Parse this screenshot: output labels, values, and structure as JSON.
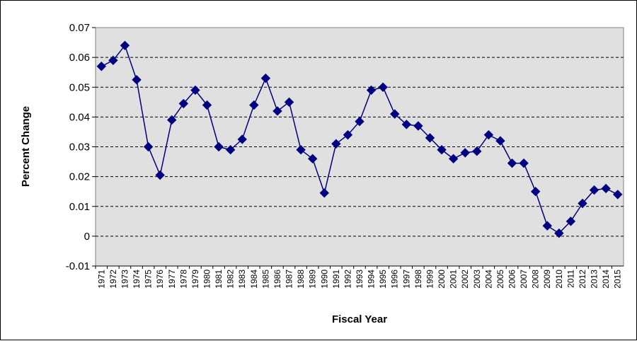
{
  "chart_data": {
    "type": "line",
    "title": "",
    "xlabel": "Fiscal Year",
    "ylabel": "Percent Change",
    "ylim": [
      -0.01,
      0.07
    ],
    "yticks": [
      "0.07",
      "0.06",
      "0.05",
      "0.04",
      "0.03",
      "0.02",
      "0.01",
      "0",
      "-0.01"
    ],
    "grid": "horizontal dashed",
    "legend": "none",
    "plot_background": "#E0E0E0",
    "series_color": "#000080",
    "marker": "diamond",
    "x": [
      "1971",
      "1972",
      "1973",
      "1974",
      "1975",
      "1976",
      "1977",
      "1978",
      "1979",
      "1980",
      "1981",
      "1982",
      "1983",
      "1984",
      "1985",
      "1986",
      "1987",
      "1988",
      "1989",
      "1990",
      "1991",
      "1992",
      "1993",
      "1994",
      "1995",
      "1996",
      "1997",
      "1998",
      "1999",
      "2000",
      "2001",
      "2002",
      "2003",
      "2004",
      "2005",
      "2006",
      "2007",
      "2008",
      "2009",
      "2010",
      "2011",
      "2012",
      "2013",
      "2014",
      "2015"
    ],
    "series": [
      {
        "values": [
          0.057,
          0.059,
          0.064,
          0.0525,
          0.03,
          0.0205,
          0.039,
          0.0445,
          0.049,
          0.044,
          0.03,
          0.029,
          0.0325,
          0.044,
          0.053,
          0.042,
          0.045,
          0.029,
          0.026,
          0.0145,
          0.031,
          0.034,
          0.0385,
          0.049,
          0.05,
          0.041,
          0.0375,
          0.037,
          0.033,
          0.029,
          0.026,
          0.028,
          0.0285,
          0.034,
          0.032,
          0.0245,
          0.0245,
          0.015,
          0.0035,
          0.001,
          0.005,
          0.011,
          0.0155,
          0.016,
          0.014
        ]
      }
    ]
  }
}
